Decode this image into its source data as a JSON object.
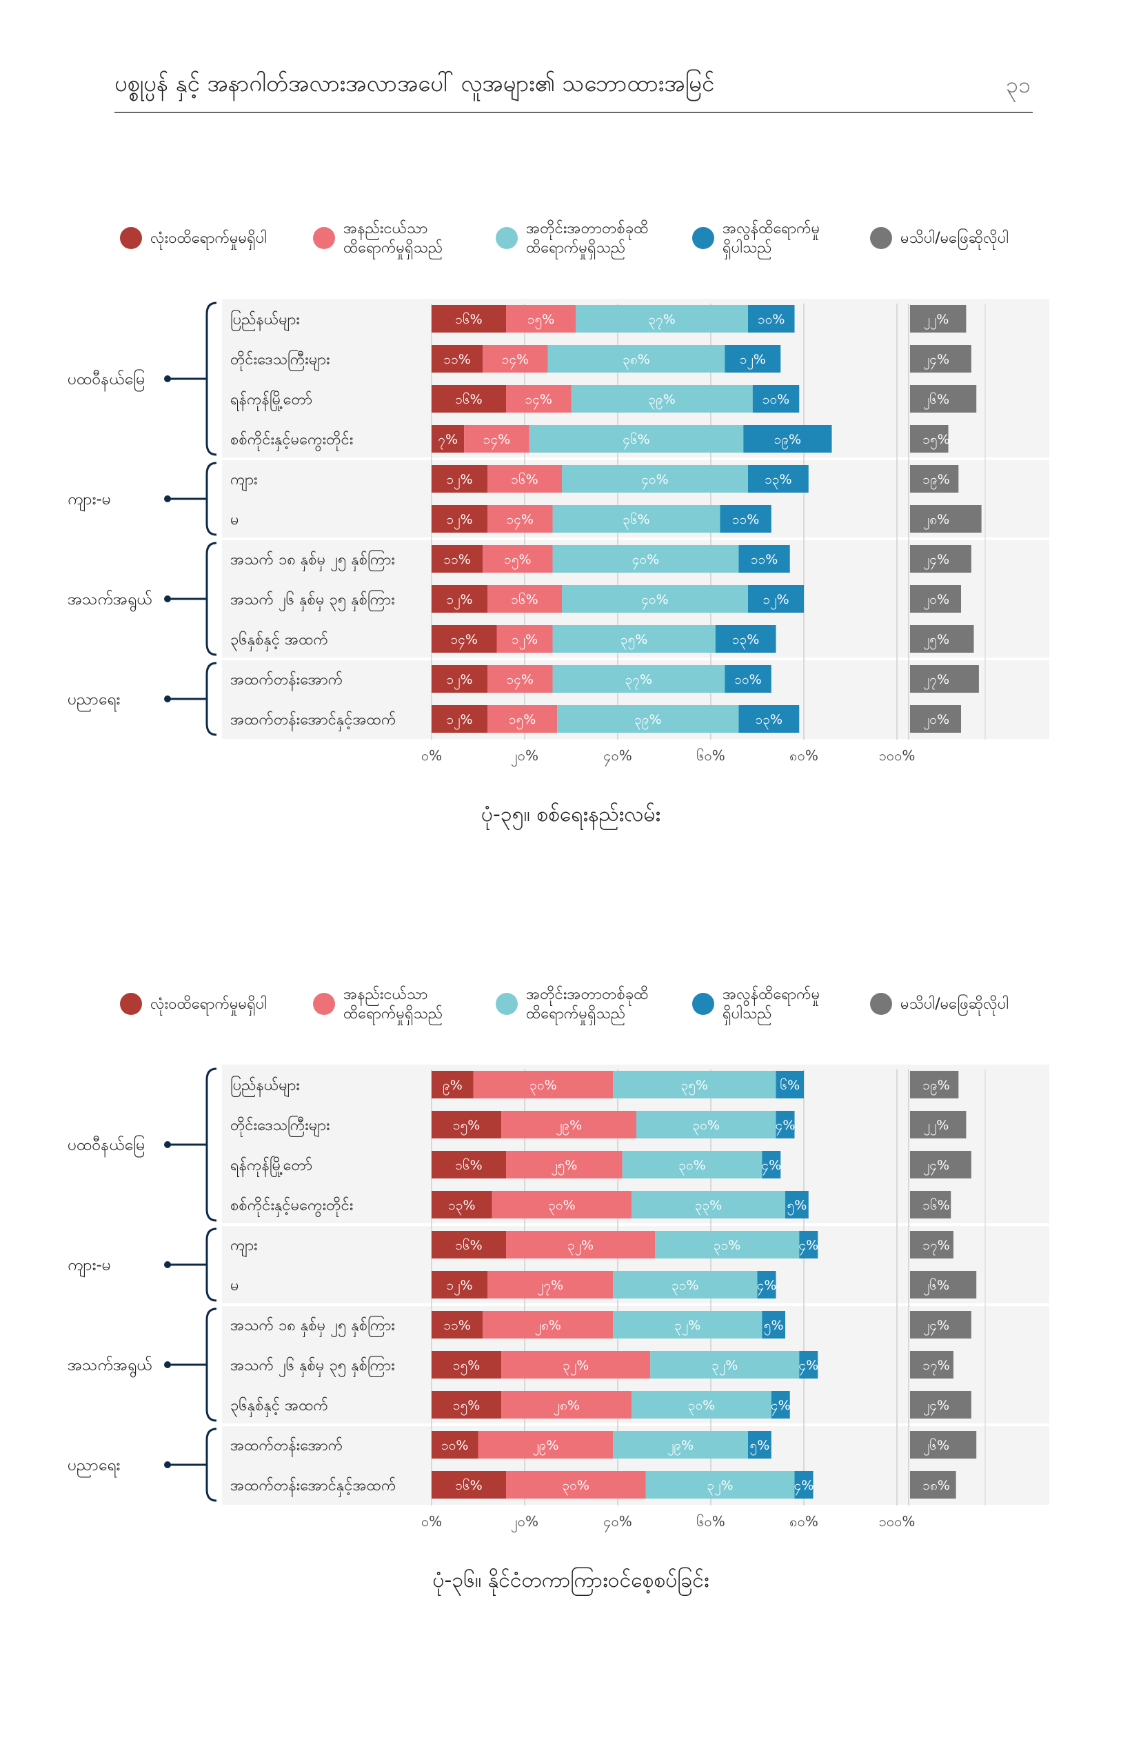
{
  "header": {
    "title": "ပစ္စုပ္ပန် နှင့် အနာဂါတ်အလားအလာအပေါ် လူအများ၏ သဘောထားအမြင်",
    "page_number": "၃၁"
  },
  "colors": {
    "none": "#b03a34",
    "little": "#ef7178",
    "some": "#7fccd5",
    "great": "#1f87b8",
    "dk": "#777777",
    "panel": "#f4f4f4",
    "bracket": "#0f2a47"
  },
  "chart_data": [
    {
      "type": "bar",
      "title": "ပုံ-၃၅။ စစ်ရေးနည်းလမ်း",
      "legend": [
        "လုံးဝထိရောက်မှုမရှိပါ",
        "အနည်းငယ်သာ ထိရောက်မှုရှိသည်",
        "အတိုင်းအတာတစ်ခုထိ ထိရောက်မှုရှိသည်",
        "အလွန်ထိရောက်မှု ရှိပါသည်",
        "မသိပါ/မဖြေဆိုလိုပါ"
      ],
      "legend_placement": "top",
      "xticks": [
        "၀%",
        "၂၀%",
        "၄၀%",
        "၆၀%",
        "၈၀%",
        "၁၀၀%"
      ],
      "xlim": [
        0,
        100
      ],
      "groups": [
        {
          "name": "ပထဝီနယ်မြေ",
          "rows": [
            0,
            1,
            2,
            3
          ]
        },
        {
          "name": "ကျား-မ",
          "rows": [
            4,
            5
          ]
        },
        {
          "name": "အသက်အရွယ်",
          "rows": [
            6,
            7,
            8
          ]
        },
        {
          "name": "ပညာရေး",
          "rows": [
            9,
            10
          ]
        }
      ],
      "categories": [
        "ပြည်နယ်များ",
        "တိုင်းဒေသကြီးများ",
        "ရန်ကုန်မြို့တော်",
        "စစ်ကိုင်းနှင့်မကွေးတိုင်း",
        "ကျား",
        "မ",
        "အသက် ၁၈ နှစ်မှ ၂၅ နှစ်ကြား",
        "အသက် ၂၆ နှစ်မှ ၃၅ နှစ်ကြား",
        "၃၆နှစ်နှင့် အထက်",
        "အထက်တန်းအောက်",
        "အထက်တန်းအောင်နှင့်အထက်"
      ],
      "series": [
        {
          "name": "လုံးဝထိရောက်မှုမရှိပါ",
          "values": [
            16,
            11,
            16,
            7,
            12,
            12,
            11,
            12,
            14,
            12,
            12
          ],
          "labels": [
            "၁၆%",
            "၁၁%",
            "၁၆%",
            "၇%",
            "၁၂%",
            "၁၂%",
            "၁၁%",
            "၁၂%",
            "၁၄%",
            "၁၂%",
            "၁၂%"
          ]
        },
        {
          "name": "အနည်းငယ်သာ ထိရောက်မှုရှိသည်",
          "values": [
            15,
            14,
            14,
            14,
            16,
            14,
            15,
            16,
            12,
            14,
            15
          ],
          "labels": [
            "၁၅%",
            "၁၄%",
            "၁၄%",
            "၁၄%",
            "၁၆%",
            "၁၄%",
            "၁၅%",
            "၁၆%",
            "၁၂%",
            "၁၄%",
            "၁၅%"
          ]
        },
        {
          "name": "အတိုင်းအတာတစ်ခုထိ ထိရောက်မှုရှိသည်",
          "values": [
            37,
            38,
            39,
            46,
            40,
            36,
            40,
            40,
            35,
            37,
            39
          ],
          "labels": [
            "၃၇%",
            "၃၈%",
            "၃၉%",
            "၄၆%",
            "၄၀%",
            "၃၆%",
            "၄၀%",
            "၄၀%",
            "၃၅%",
            "၃၇%",
            "၃၉%"
          ]
        },
        {
          "name": "အလွန်ထိရောက်မှု ရှိပါသည်",
          "values": [
            10,
            12,
            10,
            19,
            13,
            11,
            11,
            12,
            13,
            10,
            13
          ],
          "labels": [
            "၁၀%",
            "၁၂%",
            "၁၀%",
            "၁၉%",
            "၁၃%",
            "၁၁%",
            "၁၁%",
            "၁၂%",
            "၁၃%",
            "၁၀%",
            "၁၃%"
          ]
        },
        {
          "name": "မသိပါ/မဖြေဆိုလိုပါ",
          "values": [
            22,
            24,
            26,
            15,
            19,
            28,
            24,
            20,
            25,
            27,
            20
          ],
          "labels": [
            "၂၂%",
            "၂၄%",
            "၂၆%",
            "၁၅%",
            "၁၉%",
            "၂၈%",
            "၂၄%",
            "၂၀%",
            "၂၅%",
            "၂၇%",
            "၂၀%"
          ]
        }
      ]
    },
    {
      "type": "bar",
      "title": "ပုံ-၃၆။ နိုင်ငံတကာကြားဝင်စေ့စပ်ခြင်း",
      "legend": [
        "လုံးဝထိရောက်မှုမရှိပါ",
        "အနည်းငယ်သာ ထိရောက်မှုရှိသည်",
        "အတိုင်းအတာတစ်ခုထိ ထိရောက်မှုရှိသည်",
        "အလွန်ထိရောက်မှု ရှိပါသည်",
        "မသိပါ/မဖြေဆိုလိုပါ"
      ],
      "legend_placement": "top",
      "xticks": [
        "၀%",
        "၂၀%",
        "၄၀%",
        "၆၀%",
        "၈၀%",
        "၁၀၀%"
      ],
      "xlim": [
        0,
        100
      ],
      "groups": [
        {
          "name": "ပထဝီနယ်မြေ",
          "rows": [
            0,
            1,
            2,
            3
          ]
        },
        {
          "name": "ကျား-မ",
          "rows": [
            4,
            5
          ]
        },
        {
          "name": "အသက်အရွယ်",
          "rows": [
            6,
            7,
            8
          ]
        },
        {
          "name": "ပညာရေး",
          "rows": [
            9,
            10
          ]
        }
      ],
      "categories": [
        "ပြည်နယ်များ",
        "တိုင်းဒေသကြီးများ",
        "ရန်ကုန်မြို့တော်",
        "စစ်ကိုင်းနှင့်မကွေးတိုင်း",
        "ကျား",
        "မ",
        "အသက် ၁၈ နှစ်မှ ၂၅ နှစ်ကြား",
        "အသက် ၂၆ နှစ်မှ ၃၅ နှစ်ကြား",
        "၃၆နှစ်နှင့် အထက်",
        "အထက်တန်းအောက်",
        "အထက်တန်းအောင်နှင့်အထက်"
      ],
      "series": [
        {
          "name": "လုံးဝထိရောက်မှုမရှိပါ",
          "values": [
            9,
            15,
            16,
            13,
            16,
            12,
            11,
            15,
            15,
            10,
            16
          ],
          "labels": [
            "၉%",
            "၁၅%",
            "၁၆%",
            "၁၃%",
            "၁၆%",
            "၁၂%",
            "၁၁%",
            "၁၅%",
            "၁၅%",
            "၁၀%",
            "၁၆%"
          ]
        },
        {
          "name": "အနည်းငယ်သာ ထိရောက်မှုရှိသည်",
          "values": [
            30,
            29,
            25,
            30,
            32,
            27,
            28,
            32,
            28,
            29,
            30
          ],
          "labels": [
            "၃၀%",
            "၂၉%",
            "၂၅%",
            "၃၀%",
            "၃၂%",
            "၂၇%",
            "၂၈%",
            "၃၂%",
            "၂၈%",
            "၂၉%",
            "၃၀%"
          ]
        },
        {
          "name": "အတိုင်းအတာတစ်ခုထိ ထိရောက်မှုရှိသည်",
          "values": [
            35,
            30,
            30,
            33,
            31,
            31,
            32,
            32,
            30,
            29,
            32
          ],
          "labels": [
            "၃၅%",
            "၃၀%",
            "၃၀%",
            "၃၃%",
            "၃၁%",
            "၃၁%",
            "၃၂%",
            "၃၂%",
            "၃၀%",
            "၂၉%",
            "၃၂%"
          ]
        },
        {
          "name": "အလွန်ထိရောက်မှု ရှိပါသည်",
          "values": [
            6,
            4,
            4,
            5,
            4,
            4,
            5,
            4,
            4,
            5,
            4
          ],
          "labels": [
            "၆%",
            "၄%",
            "၄%",
            "၅%",
            "၄%",
            "၄%",
            "၅%",
            "၄%",
            "၄%",
            "၅%",
            "၄%"
          ]
        },
        {
          "name": "မသိပါ/မဖြေဆိုလိုပါ",
          "values": [
            19,
            22,
            24,
            16,
            17,
            26,
            24,
            17,
            24,
            26,
            18
          ],
          "labels": [
            "၁၉%",
            "၂၂%",
            "၂၄%",
            "၁၆%",
            "၁၇%",
            "၂၆%",
            "၂၄%",
            "၁၇%",
            "၂၄%",
            "၂၆%",
            "၁၈%"
          ]
        }
      ]
    }
  ]
}
